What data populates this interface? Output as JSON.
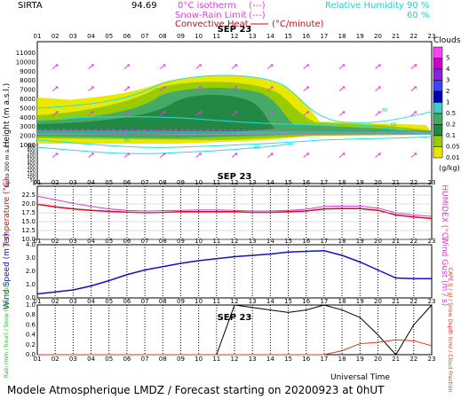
{
  "header": {
    "station": "SIRTA",
    "coords": "94.69",
    "legend_isotherm": "0°C isotherm",
    "legend_isotherm_dash": "(---)",
    "legend_snow": "Snow-Rain Limit",
    "legend_snow_dash": "(---)",
    "legend_conv": "Convective Heat.",
    "legend_conv_unit": "(°C/minute)",
    "legend_rh": "Relative Humidity",
    "legend_rh_90": "90 %",
    "legend_rh_60": "60 %"
  },
  "hours": [
    "01",
    "02",
    "03",
    "04",
    "05",
    "06",
    "07",
    "08",
    "09",
    "10",
    "11",
    "12",
    "13",
    "14",
    "15",
    "16",
    "17",
    "18",
    "19",
    "20",
    "21",
    "22",
    "23"
  ],
  "date_label": "SEP 23",
  "footer": {
    "universal_time": "Universal Time",
    "model": "Modele Atmospherique LMDZ / Forecast starting on 20200923 at 0hUT"
  },
  "colors": {
    "temperature": "#e8001c",
    "humidex": "#d040d0",
    "wind": "#1010d0",
    "cape": "#e03020",
    "rh": "#20e0e0",
    "isotherm": "#e040e0"
  },
  "chart_data": [
    {
      "type": "heatmap",
      "name": "Clouds",
      "ylabel": "Height (m a.s.l.)",
      "yticks": [
        "11000",
        "10000",
        "9000",
        "8000",
        "7000",
        "6000",
        "5000",
        "4000",
        "3000",
        "2000",
        "1000",
        "900",
        "800",
        "700",
        "600",
        "500",
        "400",
        "300",
        "200",
        "150",
        "100",
        "50",
        "0"
      ],
      "ylabel_low": "Up to 200 m a.s.l.",
      "colorbar_title": "Clouds",
      "colorbar_unit": "(g/kg)",
      "colorbar_levels": [
        "5",
        "4",
        "3",
        "2",
        "1",
        "0.5",
        "0.2",
        "0.1",
        "0.05",
        "0.01"
      ],
      "colorbar_colors": [
        "#ff40ff",
        "#cc00cc",
        "#8822dd",
        "#4040ff",
        "#0000b0",
        "#44c8c8",
        "#44aa66",
        "#228844",
        "#99cc00",
        "#e8e800"
      ],
      "rh_labels": [
        "60",
        "60",
        "60",
        "80",
        "80",
        "80"
      ]
    },
    {
      "type": "line",
      "name": "Temperature / Humidex",
      "ylabel": "Temperature (°C)",
      "ylabel_right": "HUMIDEX (°C)",
      "ylim": [
        10,
        25
      ],
      "yticks": [
        "10.0",
        "12.5",
        "15.0",
        "17.5",
        "20.0",
        "22.5"
      ],
      "series": [
        {
          "name": "Temperature",
          "values": [
            19.9,
            19.2,
            18.6,
            18.2,
            17.9,
            17.7,
            17.5,
            17.6,
            17.8,
            17.8,
            17.8,
            17.8,
            17.6,
            17.6,
            17.8,
            18.0,
            18.6,
            18.7,
            18.7,
            18.2,
            16.9,
            16.3,
            15.9
          ]
        },
        {
          "name": "Humidex",
          "values": [
            22.2,
            21.2,
            20.2,
            19.3,
            18.6,
            18.2,
            18.0,
            18.1,
            18.2,
            18.3,
            18.3,
            18.2,
            18.0,
            18.0,
            18.2,
            18.5,
            19.3,
            19.4,
            19.4,
            18.8,
            17.5,
            16.9,
            16.5
          ]
        }
      ]
    },
    {
      "type": "line",
      "name": "Wind",
      "ylabel": "Wind Speed (m / s)",
      "ylabel_right": "Wind Gust (m / s)",
      "ylim": [
        0,
        4
      ],
      "yticks": [
        "0.0",
        "1.0",
        "2.0",
        "3.0",
        "4.0"
      ],
      "series": [
        {
          "name": "Wind Speed",
          "values": [
            0.3,
            0.45,
            0.6,
            0.9,
            1.3,
            1.75,
            2.1,
            2.35,
            2.6,
            2.8,
            2.95,
            3.1,
            3.2,
            3.3,
            3.45,
            3.5,
            3.55,
            3.2,
            2.7,
            2.1,
            1.5,
            1.45,
            1.45
          ]
        }
      ]
    },
    {
      "type": "line",
      "name": "Precipitation",
      "ylabel": "Rain (mm / hour) / Snow (cm / hour)",
      "ylabel_right": "CAPE (J / g) / Snow Depth (cm) / Cloud Fraction",
      "ylim": [
        0,
        1
      ],
      "yticks": [
        "0.0",
        "0.2",
        "0.4",
        "0.6",
        "0.8",
        "1.0"
      ],
      "series": [
        {
          "name": "Cloud Fraction",
          "values": [
            0,
            0,
            0,
            0,
            0,
            0,
            0,
            0,
            0,
            0,
            0,
            1.0,
            0.95,
            0.9,
            0.85,
            0.9,
            1.0,
            0.9,
            0.75,
            0.4,
            0.0,
            0.6,
            1.0
          ]
        },
        {
          "name": "CAPE",
          "values": [
            0,
            0,
            0,
            0,
            0,
            0,
            0,
            0,
            0,
            0,
            0,
            0,
            0,
            0,
            0,
            0,
            0,
            0.08,
            0.22,
            0.25,
            0.3,
            0.28,
            0.18
          ]
        }
      ]
    }
  ]
}
